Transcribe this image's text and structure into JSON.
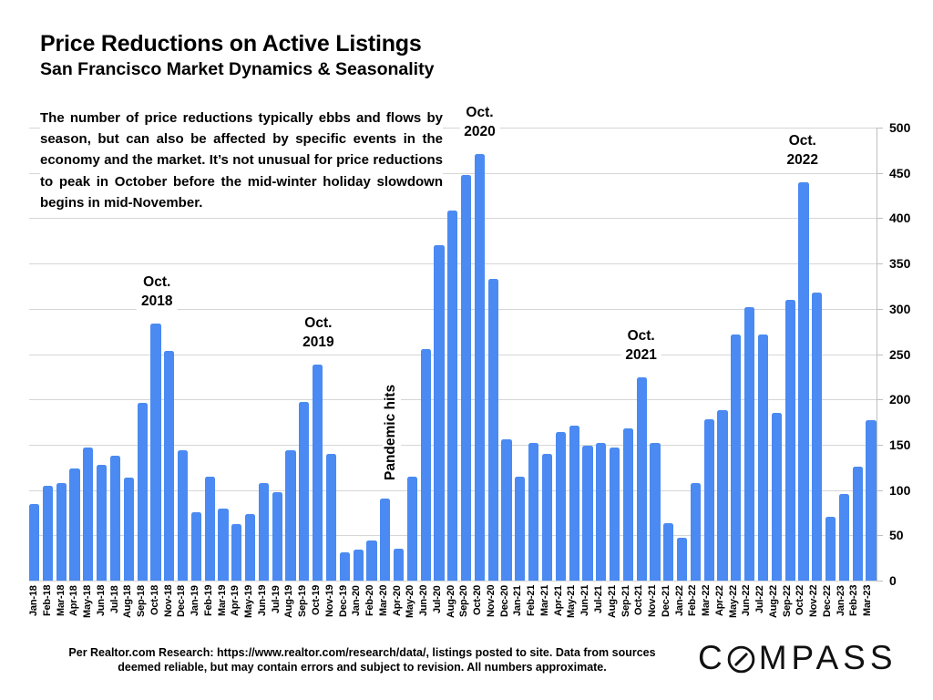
{
  "title": "Price Reductions on Active Listings",
  "subtitle": "San Francisco Market Dynamics & Seasonality",
  "description": "The number of price reductions typically ebbs and flows by season, but can also be affected by specific events in the economy and the market. It’s not unusual for price reductions to peak in October before the mid-winter holiday slowdown begins in mid-November.",
  "chart_data": {
    "type": "bar",
    "title": "Price Reductions on Active Listings",
    "categories": [
      "Jan-18",
      "Feb-18",
      "Mar-18",
      "Apr-18",
      "May-18",
      "Jun-18",
      "Jul-18",
      "Aug-18",
      "Sep-18",
      "Oct-18",
      "Nov-18",
      "Dec-18",
      "Jan-19",
      "Feb-19",
      "Mar-19",
      "Apr-19",
      "May-19",
      "Jun-19",
      "Jul-19",
      "Aug-19",
      "Sep-19",
      "Oct-19",
      "Nov-19",
      "Dec-19",
      "Jan-20",
      "Feb-20",
      "Mar-20",
      "Apr-20",
      "May-20",
      "Jun-20",
      "Jul-20",
      "Aug-20",
      "Sep-20",
      "Oct-20",
      "Nov-20",
      "Dec-20",
      "Jan-21",
      "Feb-21",
      "Mar-21",
      "Apr-21",
      "May-21",
      "Jun-21",
      "Jul-21",
      "Aug-21",
      "Sep-21",
      "Oct-21",
      "Nov-21",
      "Dec-21",
      "Jan-22",
      "Feb-22",
      "Mar-22",
      "Apr-22",
      "May-22",
      "Jun-22",
      "Jul-22",
      "Aug-22",
      "Sep-22",
      "Oct-22",
      "Nov-22",
      "Dec-22",
      "Jan-23",
      "Feb-23",
      "Mar-23"
    ],
    "values": [
      85,
      105,
      108,
      124,
      147,
      128,
      138,
      114,
      196,
      284,
      254,
      144,
      75,
      115,
      79,
      62,
      73,
      108,
      98,
      144,
      197,
      238,
      140,
      31,
      34,
      44,
      91,
      35,
      115,
      256,
      370,
      408,
      448,
      471,
      333,
      156,
      115,
      152,
      140,
      164,
      171,
      149,
      152,
      147,
      168,
      224,
      152,
      63,
      47,
      108,
      178,
      188,
      272,
      302,
      272,
      185,
      310,
      440,
      318,
      70,
      96,
      126,
      177
    ],
    "xlabel": "",
    "ylabel": "",
    "ylim": [
      0,
      500
    ],
    "yticks": [
      0,
      50,
      100,
      150,
      200,
      250,
      300,
      350,
      400,
      450,
      500
    ],
    "grid": "horizontal",
    "y_axis_side": "right",
    "annotations": [
      {
        "lines": [
          "Oct.",
          "2018"
        ],
        "month": "Oct-18"
      },
      {
        "lines": [
          "Oct.",
          "2019"
        ],
        "month": "Oct-19"
      },
      {
        "lines": [
          "Oct.",
          "2020"
        ],
        "month": "Oct-20"
      },
      {
        "lines": [
          "Oct.",
          "2021"
        ],
        "month": "Oct-21"
      },
      {
        "lines": [
          "Oct.",
          "2022"
        ],
        "month": "Oct-22"
      },
      {
        "text": "Pandemic hits",
        "month": "Mar-20",
        "rotated": true
      }
    ],
    "colors": {
      "bar": "#4a8af2",
      "gridline": "#d6d6d6",
      "axis": "#bfbfbf",
      "text": "#000000"
    }
  },
  "footer": {
    "source": "Per Realtor.com Research:  https://www.realtor.com/research/data/, listings posted to site. Data from sources deemed reliable, but may contain errors and subject to revision. All numbers approximate."
  },
  "logo": {
    "text": "COMPASS"
  }
}
